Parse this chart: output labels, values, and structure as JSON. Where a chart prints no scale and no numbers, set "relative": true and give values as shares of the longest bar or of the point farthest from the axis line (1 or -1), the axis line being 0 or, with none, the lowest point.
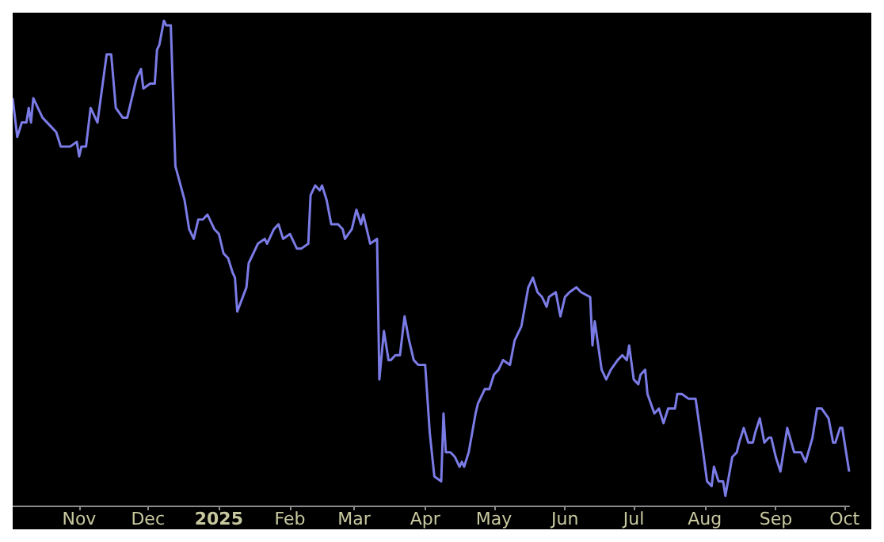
{
  "chart_data": {
    "type": "line",
    "relative": true,
    "x": [
      "2024-10-03",
      "2024-10-05",
      "2024-10-07",
      "2024-10-09",
      "2024-10-10",
      "2024-10-11",
      "2024-10-12",
      "2024-10-16",
      "2024-10-20",
      "2024-10-22",
      "2024-10-24",
      "2024-10-26",
      "2024-10-28",
      "2024-10-31",
      "2024-11-01",
      "2024-11-02",
      "2024-11-04",
      "2024-11-06",
      "2024-11-09",
      "2024-11-13",
      "2024-11-15",
      "2024-11-17",
      "2024-11-20",
      "2024-11-22",
      "2024-11-26",
      "2024-11-28",
      "2024-11-29",
      "2024-12-02",
      "2024-12-04",
      "2024-12-05",
      "2024-12-06",
      "2024-12-08",
      "2024-12-09",
      "2024-12-11",
      "2024-12-13",
      "2024-12-17",
      "2024-12-19",
      "2024-12-21",
      "2024-12-23",
      "2024-12-25",
      "2024-12-27",
      "2024-12-30",
      "2025-01-01",
      "2025-01-03",
      "2025-01-05",
      "2025-01-07",
      "2025-01-08",
      "2025-01-09",
      "2025-01-13",
      "2025-01-14",
      "2025-01-18",
      "2025-01-21",
      "2025-01-22",
      "2025-01-25",
      "2025-01-27",
      "2025-01-29",
      "2025-02-01",
      "2025-02-04",
      "2025-02-06",
      "2025-02-09",
      "2025-02-10",
      "2025-02-12",
      "2025-02-14",
      "2025-02-15",
      "2025-02-17",
      "2025-02-19",
      "2025-02-22",
      "2025-02-24",
      "2025-02-25",
      "2025-02-28",
      "2025-03-02",
      "2025-03-04",
      "2025-03-05",
      "2025-03-08",
      "2025-03-11",
      "2025-03-12",
      "2025-03-14",
      "2025-03-16",
      "2025-03-17",
      "2025-03-19",
      "2025-03-21",
      "2025-03-23",
      "2025-03-25",
      "2025-03-27",
      "2025-03-29",
      "2025-04-01",
      "2025-04-03",
      "2025-04-05",
      "2025-04-08",
      "2025-04-09",
      "2025-04-10",
      "2025-04-12",
      "2025-04-14",
      "2025-04-16",
      "2025-04-17",
      "2025-04-18",
      "2025-04-20",
      "2025-04-23",
      "2025-04-24",
      "2025-04-27",
      "2025-04-29",
      "2025-05-01",
      "2025-05-03",
      "2025-05-05",
      "2025-05-08",
      "2025-05-10",
      "2025-05-13",
      "2025-05-16",
      "2025-05-18",
      "2025-05-20",
      "2025-05-22",
      "2025-05-24",
      "2025-05-25",
      "2025-05-28",
      "2025-05-30",
      "2025-06-01",
      "2025-06-03",
      "2025-06-06",
      "2025-06-08",
      "2025-06-12",
      "2025-06-13",
      "2025-06-14",
      "2025-06-17",
      "2025-06-19",
      "2025-06-21",
      "2025-06-24",
      "2025-06-26",
      "2025-06-28",
      "2025-06-29",
      "2025-07-01",
      "2025-07-03",
      "2025-07-04",
      "2025-07-06",
      "2025-07-07",
      "2025-07-10",
      "2025-07-12",
      "2025-07-14",
      "2025-07-16",
      "2025-07-19",
      "2025-07-20",
      "2025-07-22",
      "2025-07-25",
      "2025-07-28",
      "2025-07-31",
      "2025-08-02",
      "2025-08-04",
      "2025-08-05",
      "2025-08-07",
      "2025-08-09",
      "2025-08-10",
      "2025-08-13",
      "2025-08-15",
      "2025-08-16",
      "2025-08-18",
      "2025-08-20",
      "2025-08-22",
      "2025-08-23",
      "2025-08-25",
      "2025-08-27",
      "2025-08-29",
      "2025-08-30",
      "2025-09-01",
      "2025-09-03",
      "2025-09-06",
      "2025-09-09",
      "2025-09-12",
      "2025-09-14",
      "2025-09-17",
      "2025-09-19",
      "2025-09-21",
      "2025-09-24",
      "2025-09-26",
      "2025-09-27",
      "2025-09-29",
      "2025-09-30",
      "2025-10-01",
      "2025-10-03"
    ],
    "series": [
      {
        "color": "#7b7be6",
        "values": [
          0.84,
          0.76,
          0.79,
          0.79,
          0.82,
          0.79,
          0.84,
          0.8,
          0.78,
          0.77,
          0.74,
          0.74,
          0.74,
          0.75,
          0.72,
          0.74,
          0.74,
          0.82,
          0.79,
          0.93,
          0.93,
          0.82,
          0.8,
          0.8,
          0.88,
          0.9,
          0.86,
          0.87,
          0.87,
          0.94,
          0.95,
          1,
          0.99,
          0.99,
          0.7,
          0.63,
          0.57,
          0.55,
          0.59,
          0.59,
          0.6,
          0.57,
          0.56,
          0.52,
          0.51,
          0.48,
          0.47,
          0.4,
          0.45,
          0.5,
          0.54,
          0.55,
          0.54,
          0.57,
          0.58,
          0.55,
          0.56,
          0.53,
          0.53,
          0.54,
          0.64,
          0.66,
          0.65,
          0.66,
          0.63,
          0.58,
          0.58,
          0.57,
          0.55,
          0.57,
          0.61,
          0.58,
          0.6,
          0.54,
          0.55,
          0.26,
          0.36,
          0.3,
          0.3,
          0.31,
          0.31,
          0.39,
          0.34,
          0.3,
          0.29,
          0.29,
          0.15,
          0.06,
          0.05,
          0.19,
          0.11,
          0.11,
          0.1,
          0.08,
          0.09,
          0.08,
          0.11,
          0.19,
          0.21,
          0.24,
          0.24,
          0.27,
          0.28,
          0.3,
          0.29,
          0.34,
          0.37,
          0.45,
          0.47,
          0.44,
          0.43,
          0.41,
          0.43,
          0.44,
          0.39,
          0.43,
          0.44,
          0.45,
          0.44,
          0.43,
          0.33,
          0.38,
          0.28,
          0.26,
          0.28,
          0.3,
          0.31,
          0.3,
          0.33,
          0.26,
          0.25,
          0.27,
          0.28,
          0.23,
          0.19,
          0.2,
          0.17,
          0.2,
          0.2,
          0.23,
          0.23,
          0.22,
          0.22,
          0.12,
          0.05,
          0.04,
          0.08,
          0.05,
          0.05,
          0.02,
          0.1,
          0.11,
          0.13,
          0.16,
          0.13,
          0.13,
          0.15,
          0.18,
          0.13,
          0.14,
          0.14,
          0.1,
          0.07,
          0.16,
          0.11,
          0.11,
          0.09,
          0.14,
          0.2,
          0.2,
          0.18,
          0.13,
          0.13,
          0.16,
          0.16,
          0.13,
          0.07
        ]
      }
    ],
    "xlim": [
      "2024-10-03",
      "2025-10-03"
    ],
    "xticks": [
      {
        "value": "2024-11-01",
        "label": "Nov"
      },
      {
        "value": "2024-12-01",
        "label": "Dec"
      },
      {
        "value": "2025-01-01",
        "label": "2025"
      },
      {
        "value": "2025-02-01",
        "label": "Feb"
      },
      {
        "value": "2025-03-01",
        "label": "Mar"
      },
      {
        "value": "2025-04-01",
        "label": "Apr"
      },
      {
        "value": "2025-05-01",
        "label": "May"
      },
      {
        "value": "2025-06-01",
        "label": "Jun"
      },
      {
        "value": "2025-07-01",
        "label": "Jul"
      },
      {
        "value": "2025-08-01",
        "label": "Aug"
      },
      {
        "value": "2025-09-01",
        "label": "Sep"
      },
      {
        "value": "2025-10-01",
        "label": "Oct"
      }
    ]
  }
}
